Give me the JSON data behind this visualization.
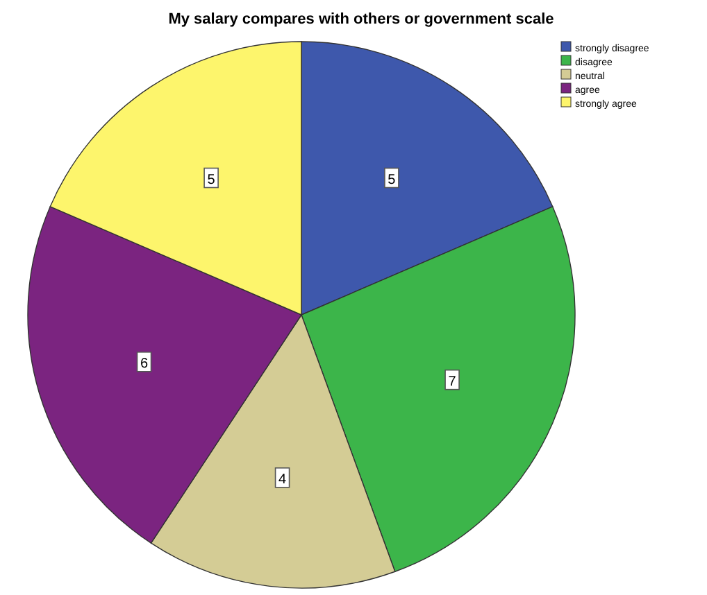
{
  "chart_data": {
    "type": "pie",
    "title": "My salary compares with others or government scale",
    "categories": [
      "strongly disagree",
      "disagree",
      "neutral",
      "agree",
      "strongly agree"
    ],
    "values": [
      5,
      7,
      4,
      6,
      5
    ],
    "colors": [
      "#3e58ac",
      "#3cb54a",
      "#d4cc95",
      "#7b2480",
      "#fdf56c"
    ],
    "data_labels": true,
    "legend": "top right"
  }
}
